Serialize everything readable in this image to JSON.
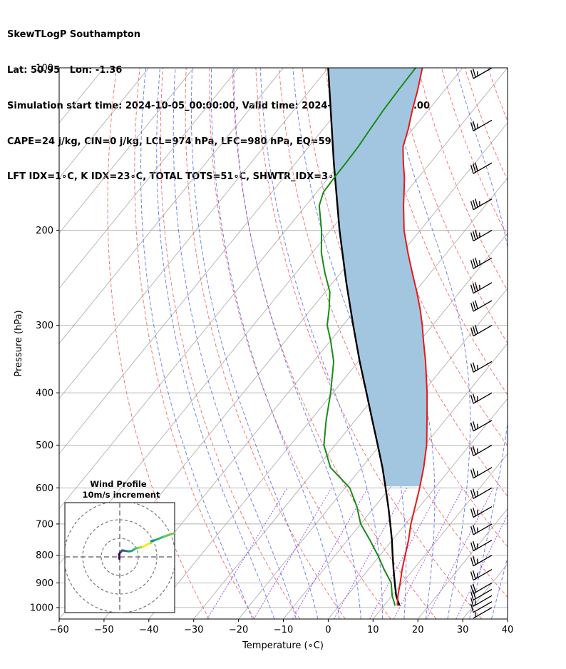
{
  "header": {
    "line1": "SkewTLogP Southampton",
    "line2": "Lat: 50.95   Lon: -1.36",
    "line3": "Simulation start time: 2024-10-05_00:00:00, Valid time: 2024-10-07T08:00:00.00",
    "line4": "CAPE=24 j/kg, CIN=0 j/kg, LCL=974 hPa, LFC=980 hPa, EQ=596 hPa",
    "line5": "LFT IDX=1∘C, K IDX=23∘C, TOTAL TOTS=51∘C, SHWTR_IDX=3∘C"
  },
  "chart_data": {
    "type": "line",
    "subtype": "skew-t log-p",
    "xlabel": "Temperature (∘C)",
    "ylabel": "Pressure (hPa)",
    "xlim": [
      -60,
      40
    ],
    "ylim": [
      1050,
      100
    ],
    "y_scale": "log",
    "grid": true,
    "x_ticks": [
      -60,
      -50,
      -40,
      -30,
      -20,
      -10,
      0,
      10,
      20,
      30,
      40
    ],
    "y_ticks": [
      1000,
      900,
      800,
      700,
      600,
      500,
      400,
      300,
      200,
      100
    ],
    "colors": {
      "temperature": "#e31a1c",
      "dewpoint": "#1a8a1a",
      "parcel": "#000000",
      "cape_fill": "#a3c6e0",
      "dry_adiabat": "#f06a6a",
      "moist_adiabat": "#5a6cf0",
      "mixing_ratio": "#8a2be2",
      "isotherm": "#b0b0b0",
      "wind_barb": "#000000"
    },
    "series": [
      {
        "key": "temperature",
        "pressure": [
          992,
          950,
          900,
          850,
          800,
          750,
          700,
          650,
          600,
          550,
          500,
          450,
          400,
          350,
          320,
          300,
          280,
          260,
          240,
          220,
          200,
          180,
          160,
          150,
          140,
          130,
          120,
          110,
          100
        ],
        "values": [
          13,
          11.3,
          9.5,
          7.5,
          5.6,
          3.6,
          1.2,
          -1.0,
          -3.4,
          -6.2,
          -9.6,
          -14.0,
          -19.0,
          -25.0,
          -29.3,
          -32.3,
          -35.7,
          -39.6,
          -44.0,
          -48.7,
          -53.6,
          -58.2,
          -63.0,
          -66.0,
          -69.0,
          -71.0,
          -73.5,
          -76.0,
          -79.0
        ]
      },
      {
        "key": "dewpoint",
        "pressure": [
          992,
          950,
          900,
          850,
          800,
          750,
          700,
          650,
          600,
          550,
          500,
          450,
          400,
          350,
          320,
          300,
          280,
          260,
          240,
          220,
          200,
          180,
          170,
          160,
          150,
          140,
          130,
          120,
          110,
          100
        ],
        "values": [
          12.5,
          10.0,
          7.5,
          3.5,
          -0.5,
          -5.0,
          -10.0,
          -14.0,
          -19.0,
          -27.0,
          -32.5,
          -36.5,
          -40.5,
          -45.5,
          -50.0,
          -53.5,
          -56.0,
          -59.0,
          -63.5,
          -68.0,
          -72.0,
          -77.0,
          -78.5,
          -78.7,
          -78.8,
          -79.0,
          -79.5,
          -80.0,
          -80.3,
          -80.5
        ]
      },
      {
        "key": "parcel",
        "pressure": [
          992,
          950,
          900,
          850,
          800,
          750,
          700,
          650,
          600,
          550,
          500,
          450,
          400,
          350,
          300,
          250,
          200,
          150,
          100
        ],
        "values": [
          13.5,
          10.9,
          8.3,
          5.6,
          2.8,
          -0.1,
          -3.4,
          -7.0,
          -11.0,
          -15.4,
          -20.5,
          -26.2,
          -32.5,
          -39.7,
          -47.7,
          -57.0,
          -68.0,
          -81.5,
          -100.0
        ]
      }
    ],
    "cape_area": {
      "bottom_hpa": 596,
      "top_hpa": 100
    },
    "wind_barbs": {
      "pressure": [
        1000,
        975,
        950,
        925,
        900,
        850,
        800,
        750,
        700,
        650,
        600,
        550,
        500,
        450,
        400,
        350,
        300,
        270,
        250,
        225,
        200,
        175,
        150,
        125,
        100
      ],
      "speed_kt": [
        5,
        10,
        15,
        20,
        20,
        25,
        25,
        25,
        25,
        25,
        25,
        25,
        25,
        25,
        25,
        25,
        30,
        30,
        35,
        35,
        35,
        35,
        30,
        25,
        25
      ],
      "direction_deg": [
        240,
        240,
        240,
        240,
        240,
        240,
        240,
        240,
        240,
        240,
        240,
        240,
        240,
        240,
        240,
        240,
        240,
        240,
        240,
        240,
        240,
        240,
        240,
        240,
        240
      ]
    },
    "inset": {
      "title": "Wind Profile",
      "subtitle": "10m/s increment",
      "rings_ms": [
        10,
        20,
        30
      ],
      "hodograph_u": [
        -0.2,
        -0.3,
        0.3,
        0.9,
        1.3,
        2.6,
        4.8,
        6.5,
        8.5,
        10.5,
        12.7,
        15.0,
        16.8,
        17.5,
        17.0,
        19.0,
        21.5,
        24.0,
        27.0,
        30.0
      ],
      "hodograph_v": [
        -1.0,
        1.5,
        2.5,
        3.0,
        3.5,
        3.3,
        3.0,
        3.2,
        4.5,
        5.0,
        5.5,
        6.8,
        7.5,
        8.3,
        8.6,
        9.0,
        10.0,
        11.0,
        12.0,
        13.0
      ],
      "hodograph_colors": [
        "#440154",
        "#440154",
        "#472a7a",
        "#3b528b",
        "#3b528b",
        "#2c728e",
        "#21918c",
        "#27ad81",
        "#5ec962",
        "#aadc32",
        "#fde725",
        "#fde725",
        "#aadc32",
        "#5ec962",
        "#21918c",
        "#27ad81",
        "#35b779",
        "#5ec962",
        "#6ccd5a",
        "#35b779"
      ]
    }
  }
}
